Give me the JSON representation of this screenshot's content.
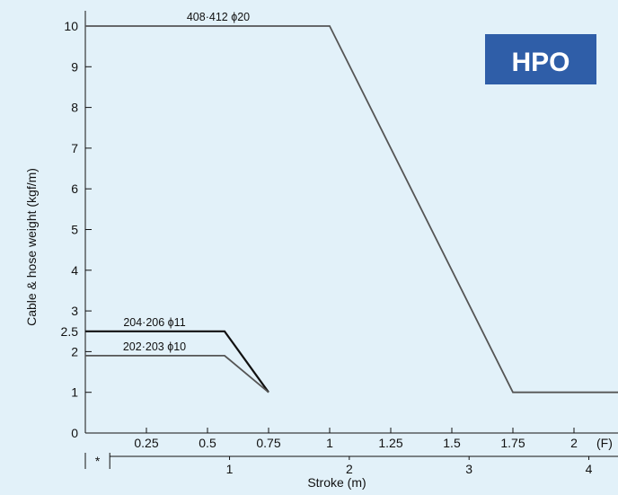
{
  "badge": {
    "text": "HPO",
    "color": "#2f5ea8"
  },
  "colors": {
    "background": "#e2f1f9",
    "axis": "#111111",
    "line_thin": "#555555",
    "line_bold": "#111111"
  },
  "chart_data": {
    "type": "line",
    "title": "",
    "ylabel": "Cable & hose weight (kgf/m)",
    "xlabel": "Stroke (m)",
    "ylim": [
      0,
      10.3
    ],
    "xlim": [
      0,
      2.18
    ],
    "y_ticks": [
      {
        "value": 0,
        "label": "0"
      },
      {
        "value": 1,
        "label": "1"
      },
      {
        "value": 2,
        "label": "2"
      },
      {
        "value": 2.5,
        "label": "2.5"
      },
      {
        "value": 3,
        "label": "3"
      },
      {
        "value": 4,
        "label": "4"
      },
      {
        "value": 5,
        "label": "5"
      },
      {
        "value": 6,
        "label": "6"
      },
      {
        "value": 7,
        "label": "7"
      },
      {
        "value": 8,
        "label": "8"
      },
      {
        "value": 9,
        "label": "9"
      },
      {
        "value": 10,
        "label": "10"
      }
    ],
    "x_ticks_F": [
      {
        "value": 0.25,
        "label": "0.25"
      },
      {
        "value": 0.5,
        "label": "0.5"
      },
      {
        "value": 0.75,
        "label": "0.75"
      },
      {
        "value": 1,
        "label": "1"
      },
      {
        "value": 1.25,
        "label": "1.25"
      },
      {
        "value": 1.5,
        "label": "1.5"
      },
      {
        "value": 1.75,
        "label": "1.75"
      },
      {
        "value": 2,
        "label": "2"
      }
    ],
    "x_unit_F": "(F)",
    "x_ticks_m": [
      {
        "value": 1,
        "label": "1"
      },
      {
        "value": 2,
        "label": "2"
      },
      {
        "value": 3,
        "label": "3"
      },
      {
        "value": 4,
        "label": "4"
      }
    ],
    "m_axis": {
      "m_per_F": 2.04,
      "offset_F": 0.1
    },
    "asterisk": "*",
    "series": [
      {
        "name": "408·412 ϕ20",
        "style": "thin",
        "x": [
          0,
          1.0,
          1.75,
          2.18
        ],
        "y": [
          10,
          10,
          1,
          1
        ]
      },
      {
        "name": "204·206 ϕ11",
        "style": "bold",
        "x": [
          0,
          0.57,
          0.75
        ],
        "y": [
          2.5,
          2.5,
          1
        ]
      },
      {
        "name": "202·203 ϕ10",
        "style": "thin",
        "x": [
          0,
          0.57,
          0.75
        ],
        "y": [
          1.9,
          1.9,
          1
        ]
      }
    ]
  }
}
